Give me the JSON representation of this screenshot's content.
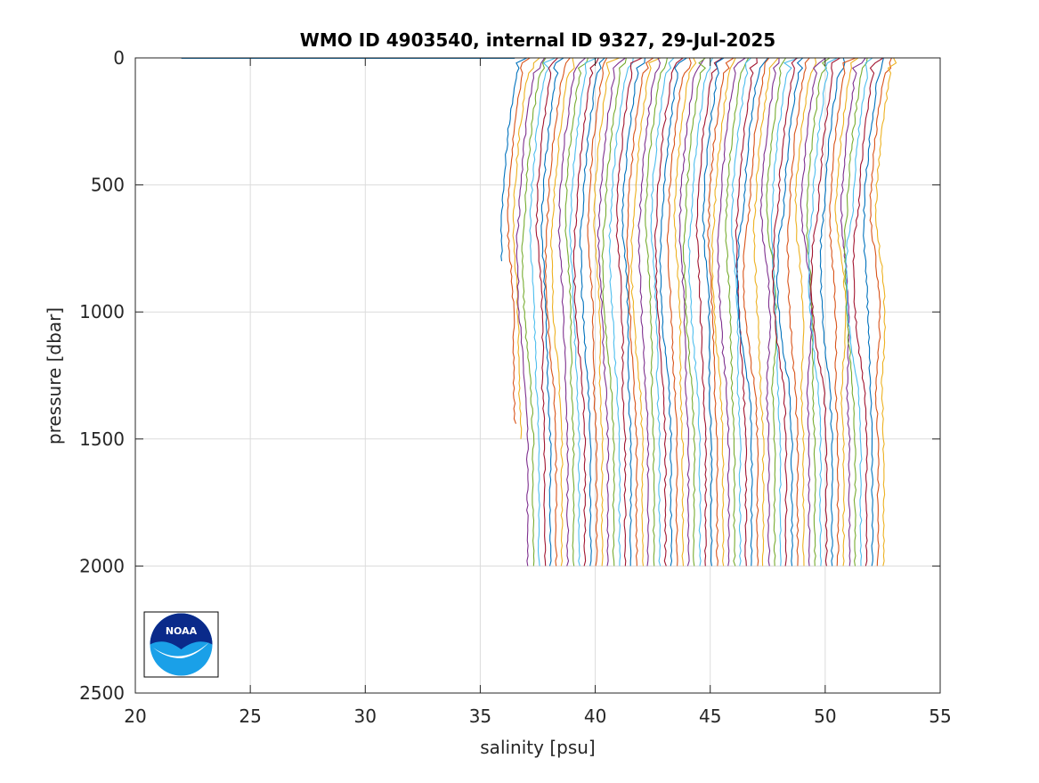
{
  "chart_data": {
    "type": "line",
    "title": "WMO ID 4903540, internal ID 9327, 29-Jul-2025",
    "xlabel": "salinity [psu]",
    "ylabel": "pressure [dbar]",
    "xlim": [
      20,
      55
    ],
    "ylim": [
      0,
      2500
    ],
    "y_reversed": true,
    "grid": true,
    "x_ticks": [
      "20",
      "25",
      "30",
      "35",
      "40",
      "45",
      "50",
      "55"
    ],
    "y_ticks": [
      "0",
      "500",
      "1000",
      "1500",
      "2000",
      "2500"
    ],
    "description_series": {
      "count": 66,
      "offset_per_profile_psu": 0.25,
      "first_profile_base_salinity_psu": 36.3,
      "profile_shape_pressure_dbar": [
        0,
        20,
        100,
        300,
        500,
        700,
        900,
        1100,
        1300,
        1500,
        1700,
        1900,
        2000
      ],
      "profile_shape_offset_psu": [
        0.6,
        0.4,
        0.2,
        -0.1,
        -0.3,
        -0.4,
        -0.3,
        -0.2,
        -0.1,
        0.0,
        0.0,
        0.0,
        0.0
      ],
      "max_pressure_dbar_by_profile": [
        810,
        1445,
        1510
      ]
    },
    "surface_outlier": {
      "pressure_dbar": 0,
      "salinity_from": 22.0,
      "salinity_to": 36.5
    },
    "colors": [
      "#0072BD",
      "#D95319",
      "#EDB120",
      "#7E2F8E",
      "#77AC30",
      "#4DBEEE",
      "#A2142F"
    ]
  },
  "logo": {
    "name": "NOAA",
    "text": "NOAA"
  }
}
